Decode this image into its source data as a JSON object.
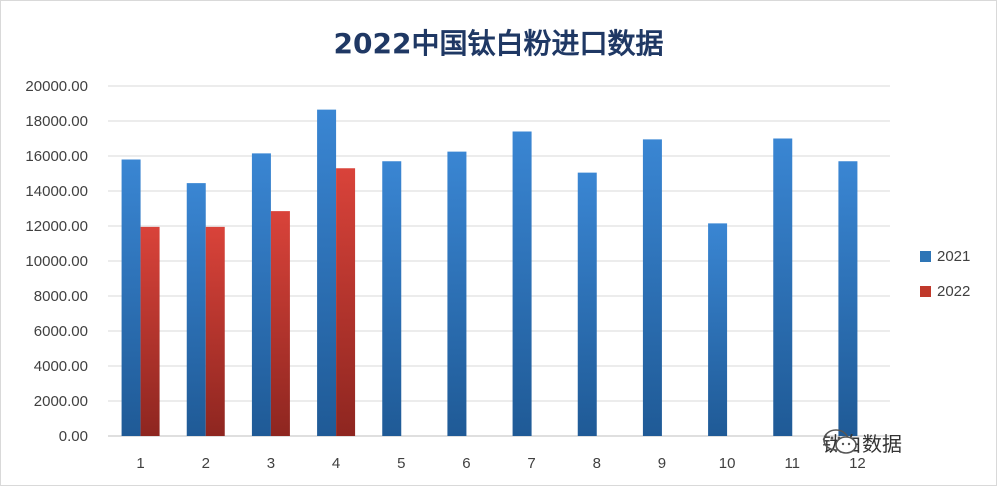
{
  "chart_data": {
    "type": "bar",
    "title": "2022中国钛白粉进口数据",
    "categories": [
      "1",
      "2",
      "3",
      "4",
      "5",
      "6",
      "7",
      "8",
      "9",
      "10",
      "11",
      "12"
    ],
    "series": [
      {
        "name": "2021",
        "color": "#2e75b6",
        "values": [
          15800,
          14450,
          16150,
          18650,
          15700,
          16250,
          17400,
          15050,
          16950,
          12150,
          17000,
          15700
        ]
      },
      {
        "name": "2022",
        "color": "#c0392b",
        "values": [
          11950,
          11950,
          12850,
          15300,
          null,
          null,
          null,
          null,
          null,
          null,
          null,
          null
        ]
      }
    ],
    "y_ticks": [
      "0.00",
      "2000.00",
      "4000.00",
      "6000.00",
      "8000.00",
      "10000.00",
      "12000.00",
      "14000.00",
      "16000.00",
      "18000.00",
      "20000.00"
    ],
    "ylim": [
      0,
      20000
    ],
    "grid": true,
    "legend_position": "right"
  },
  "watermark": {
    "text": "钛白数据",
    "icon": "wechat-icon"
  }
}
